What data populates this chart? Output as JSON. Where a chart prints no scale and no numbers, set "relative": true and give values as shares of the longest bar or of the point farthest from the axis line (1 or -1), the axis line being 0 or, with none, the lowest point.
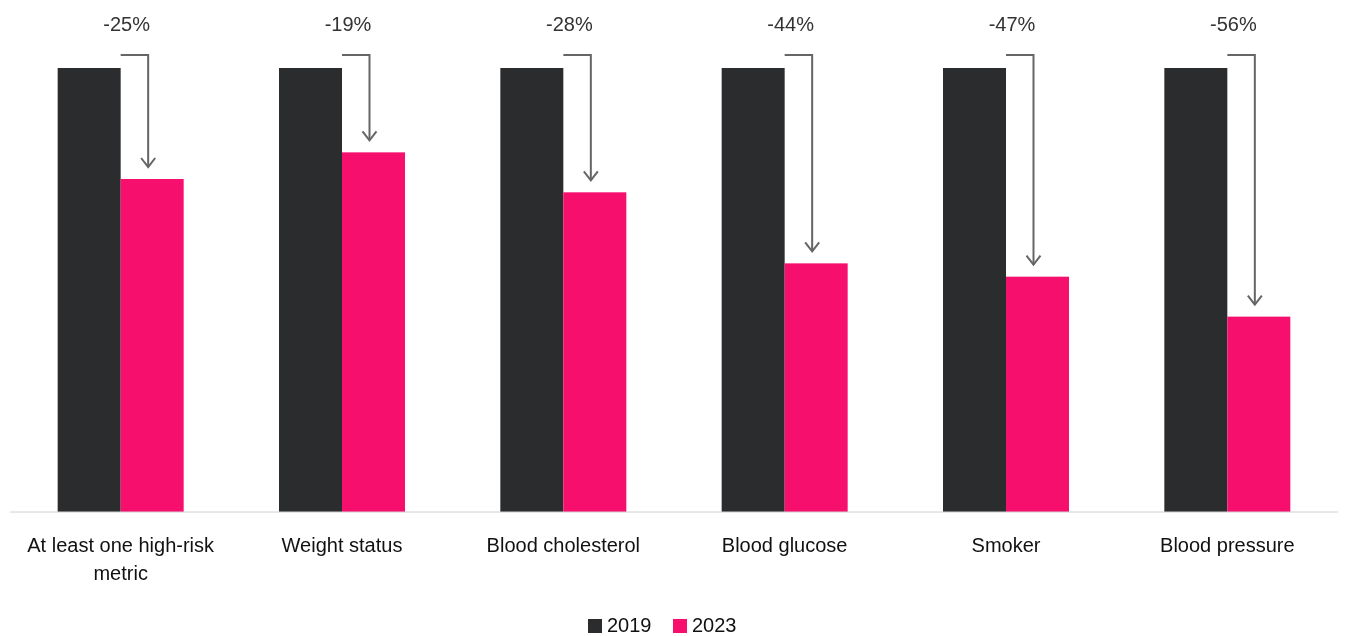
{
  "chart_data": {
    "type": "bar",
    "relative": true,
    "categories": [
      "At least one high-risk metric",
      "Weight status",
      "Blood cholesterol",
      "Blood glucose",
      "Smoker",
      "Blood pressure"
    ],
    "series": [
      {
        "name": "2019",
        "color": "#2b2c2e",
        "values": [
          1,
          1,
          1,
          1,
          1,
          1
        ]
      },
      {
        "name": "2023",
        "color": "#f70f6e",
        "values": [
          0.75,
          0.81,
          0.72,
          0.56,
          0.53,
          0.44
        ]
      }
    ],
    "annotations": [
      "-25%",
      "-19%",
      "-28%",
      "-44%",
      "-47%",
      "-56%"
    ],
    "legend": "bottom"
  }
}
